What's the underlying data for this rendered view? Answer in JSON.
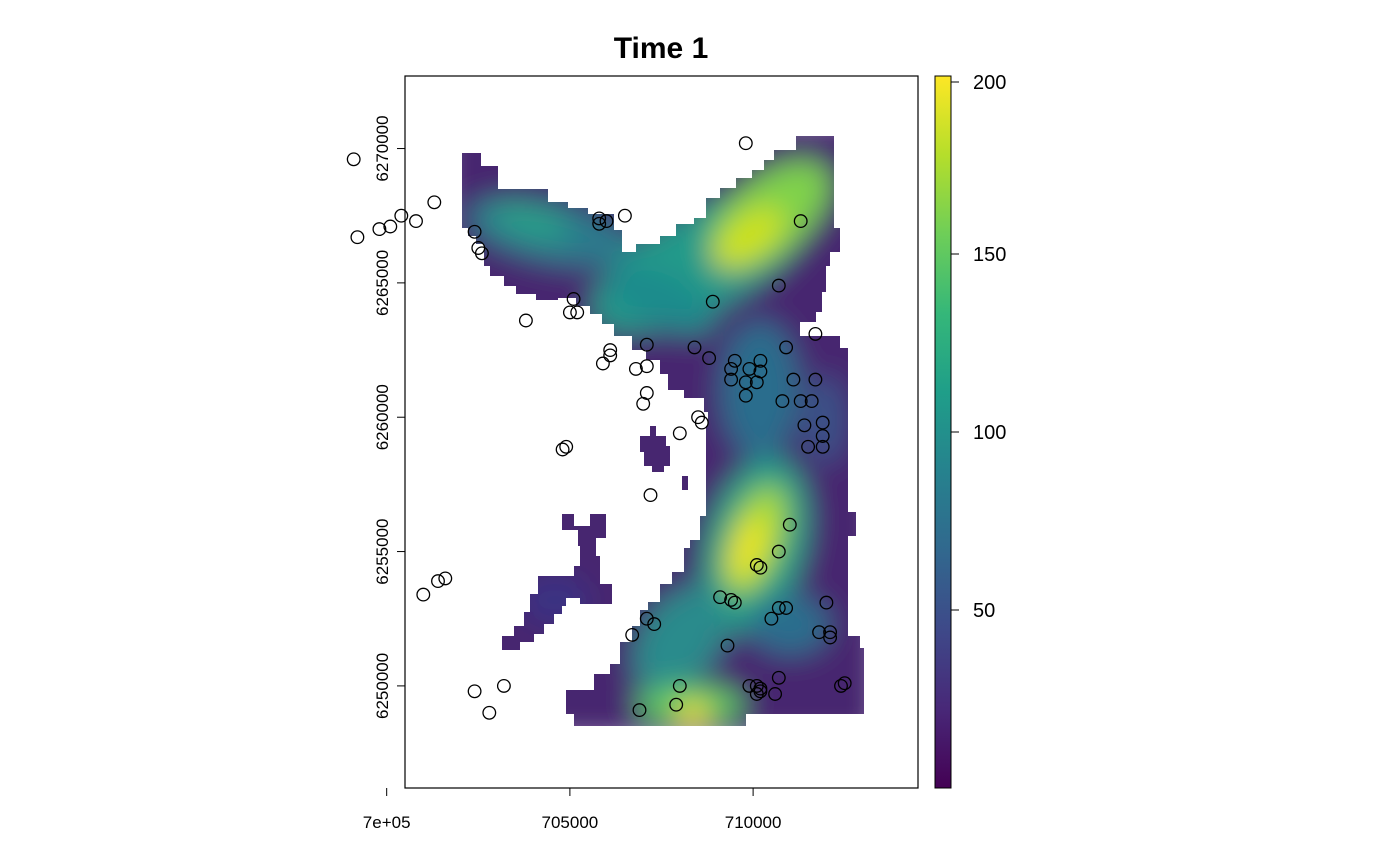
{
  "chart_data": {
    "type": "heatmap",
    "title": "Time 1",
    "xlabel": "",
    "ylabel": "",
    "xlim": [
      700500,
      714500
    ],
    "ylim": [
      6246200,
      6272700
    ],
    "x_ticks": [
      {
        "value": 700000,
        "label": "7e+05"
      },
      {
        "value": 705000,
        "label": "705000"
      },
      {
        "value": 710000,
        "label": "710000"
      }
    ],
    "y_ticks": [
      {
        "value": 6250000,
        "label": "6250000"
      },
      {
        "value": 6255000,
        "label": "6255000"
      },
      {
        "value": 6260000,
        "label": "6260000"
      },
      {
        "value": 6265000,
        "label": "6265000"
      },
      {
        "value": 6270000,
        "label": "6270000"
      }
    ],
    "colorbar": {
      "palette": "viridis",
      "min": 0,
      "max": 200,
      "ticks": [
        50,
        100,
        150,
        200
      ],
      "colors": [
        "#440154",
        "#482878",
        "#3e4989",
        "#31688e",
        "#26828e",
        "#1f9e89",
        "#35b779",
        "#6ece58",
        "#b5de2b",
        "#fde725"
      ]
    },
    "points": [
      [
        699100,
        6269600
      ],
      [
        699200,
        6266700
      ],
      [
        699800,
        6267000
      ],
      [
        700100,
        6267100
      ],
      [
        700400,
        6267500
      ],
      [
        700800,
        6267300
      ],
      [
        701300,
        6268000
      ],
      [
        702400,
        6266900
      ],
      [
        702500,
        6266300
      ],
      [
        702600,
        6266100
      ],
      [
        703800,
        6263600
      ],
      [
        705100,
        6264400
      ],
      [
        705000,
        6263900
      ],
      [
        705200,
        6263900
      ],
      [
        705800,
        6267400
      ],
      [
        706000,
        6267300
      ],
      [
        705800,
        6267200
      ],
      [
        706500,
        6267500
      ],
      [
        709800,
        6270200
      ],
      [
        711300,
        6267300
      ],
      [
        710700,
        6264900
      ],
      [
        708900,
        6264300
      ],
      [
        706100,
        6262500
      ],
      [
        706100,
        6262300
      ],
      [
        705900,
        6262000
      ],
      [
        707100,
        6262700
      ],
      [
        707100,
        6261900
      ],
      [
        706800,
        6261800
      ],
      [
        708400,
        6262600
      ],
      [
        708800,
        6262200
      ],
      [
        709500,
        6262100
      ],
      [
        709400,
        6261800
      ],
      [
        709400,
        6261400
      ],
      [
        709900,
        6261800
      ],
      [
        710200,
        6262100
      ],
      [
        710200,
        6261700
      ],
      [
        709800,
        6261300
      ],
      [
        710100,
        6261300
      ],
      [
        710900,
        6262600
      ],
      [
        711700,
        6263100
      ],
      [
        711100,
        6261400
      ],
      [
        711700,
        6261400
      ],
      [
        707100,
        6260900
      ],
      [
        707000,
        6260500
      ],
      [
        709800,
        6260800
      ],
      [
        710800,
        6260600
      ],
      [
        711300,
        6260600
      ],
      [
        711600,
        6260600
      ],
      [
        708500,
        6260000
      ],
      [
        708600,
        6259800
      ],
      [
        708000,
        6259400
      ],
      [
        711400,
        6259700
      ],
      [
        711900,
        6259800
      ],
      [
        711900,
        6259300
      ],
      [
        711500,
        6258900
      ],
      [
        711900,
        6258900
      ],
      [
        704900,
        6258900
      ],
      [
        704800,
        6258800
      ],
      [
        707200,
        6257100
      ],
      [
        711000,
        6256000
      ],
      [
        710100,
        6254500
      ],
      [
        710200,
        6254400
      ],
      [
        710700,
        6255000
      ],
      [
        701000,
        6253400
      ],
      [
        701400,
        6253900
      ],
      [
        701600,
        6254000
      ],
      [
        709100,
        6253300
      ],
      [
        709400,
        6253200
      ],
      [
        709500,
        6253100
      ],
      [
        710700,
        6252900
      ],
      [
        710900,
        6252900
      ],
      [
        712000,
        6253100
      ],
      [
        710500,
        6252500
      ],
      [
        707100,
        6252500
      ],
      [
        707300,
        6252300
      ],
      [
        706700,
        6251900
      ],
      [
        709300,
        6251500
      ],
      [
        711800,
        6252000
      ],
      [
        712100,
        6252000
      ],
      [
        712100,
        6251800
      ],
      [
        702400,
        6249800
      ],
      [
        703200,
        6250000
      ],
      [
        702800,
        6249000
      ],
      [
        708000,
        6250000
      ],
      [
        707900,
        6249300
      ],
      [
        706900,
        6249100
      ],
      [
        709900,
        6250000
      ],
      [
        710100,
        6250000
      ],
      [
        710100,
        6249700
      ],
      [
        710200,
        6249800
      ],
      [
        710200,
        6249900
      ],
      [
        710600,
        6249700
      ],
      [
        710700,
        6250300
      ],
      [
        712400,
        6250000
      ],
      [
        712500,
        6250100
      ]
    ],
    "grid": false,
    "legend_position": "right"
  }
}
